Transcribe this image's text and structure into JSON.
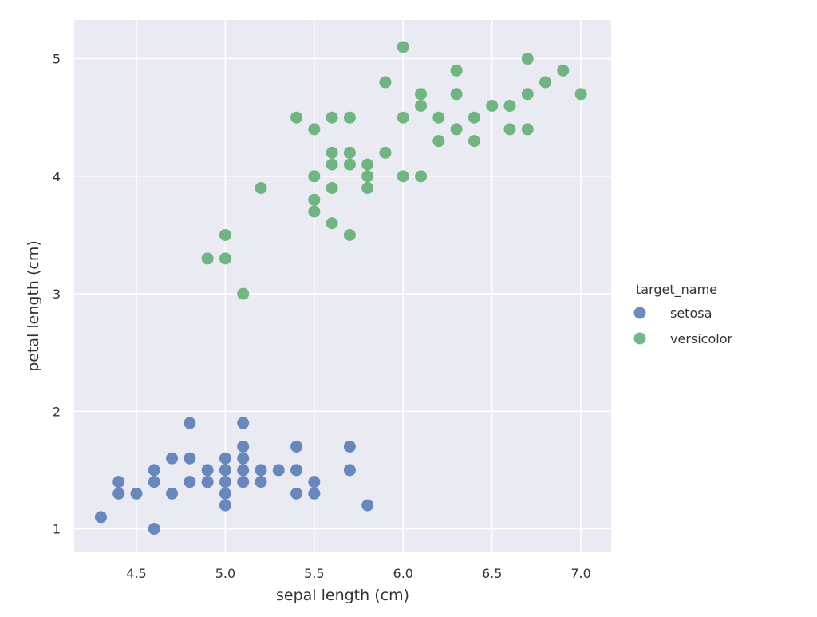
{
  "chart_data": {
    "type": "scatter",
    "xlabel": "sepal length (cm)",
    "ylabel": "petal length (cm)",
    "xlim": [
      4.15,
      7.17
    ],
    "ylim": [
      0.8,
      5.33
    ],
    "xticks": [
      "4.5",
      "5.0",
      "5.5",
      "6.0",
      "6.5",
      "7.0"
    ],
    "yticks": [
      "1",
      "2",
      "3",
      "4",
      "5"
    ],
    "grid": true,
    "background": "#eaeaf2",
    "legend": {
      "title": "target_name",
      "placement": "right"
    },
    "series": [
      {
        "name": "setosa",
        "color": "#4c72b0",
        "points": [
          [
            4.3,
            1.1
          ],
          [
            4.4,
            1.3
          ],
          [
            4.4,
            1.4
          ],
          [
            4.5,
            1.3
          ],
          [
            4.6,
            1.0
          ],
          [
            4.6,
            1.4
          ],
          [
            4.6,
            1.5
          ],
          [
            4.7,
            1.3
          ],
          [
            4.7,
            1.6
          ],
          [
            4.8,
            1.4
          ],
          [
            4.8,
            1.6
          ],
          [
            4.8,
            1.9
          ],
          [
            4.9,
            1.4
          ],
          [
            4.9,
            1.5
          ],
          [
            5.0,
            1.2
          ],
          [
            5.0,
            1.3
          ],
          [
            5.0,
            1.4
          ],
          [
            5.0,
            1.5
          ],
          [
            5.0,
            1.6
          ],
          [
            5.1,
            1.4
          ],
          [
            5.1,
            1.5
          ],
          [
            5.1,
            1.6
          ],
          [
            5.1,
            1.7
          ],
          [
            5.1,
            1.9
          ],
          [
            5.2,
            1.4
          ],
          [
            5.2,
            1.5
          ],
          [
            5.3,
            1.5
          ],
          [
            5.4,
            1.3
          ],
          [
            5.4,
            1.5
          ],
          [
            5.4,
            1.7
          ],
          [
            5.5,
            1.3
          ],
          [
            5.5,
            1.4
          ],
          [
            5.7,
            1.5
          ],
          [
            5.7,
            1.7
          ],
          [
            5.8,
            1.2
          ]
        ]
      },
      {
        "name": "versicolor",
        "color": "#55a868",
        "points": [
          [
            4.9,
            3.3
          ],
          [
            5.0,
            3.3
          ],
          [
            5.0,
            3.5
          ],
          [
            5.1,
            3.0
          ],
          [
            5.2,
            3.9
          ],
          [
            5.4,
            4.5
          ],
          [
            5.5,
            3.7
          ],
          [
            5.5,
            3.8
          ],
          [
            5.5,
            4.0
          ],
          [
            5.5,
            4.4
          ],
          [
            5.6,
            3.6
          ],
          [
            5.6,
            3.9
          ],
          [
            5.6,
            4.1
          ],
          [
            5.6,
            4.2
          ],
          [
            5.6,
            4.5
          ],
          [
            5.7,
            3.5
          ],
          [
            5.7,
            4.1
          ],
          [
            5.7,
            4.2
          ],
          [
            5.7,
            4.5
          ],
          [
            5.8,
            3.9
          ],
          [
            5.8,
            4.0
          ],
          [
            5.8,
            4.1
          ],
          [
            5.9,
            4.2
          ],
          [
            5.9,
            4.8
          ],
          [
            6.0,
            4.0
          ],
          [
            6.0,
            4.5
          ],
          [
            6.0,
            5.1
          ],
          [
            6.1,
            4.0
          ],
          [
            6.1,
            4.6
          ],
          [
            6.1,
            4.7
          ],
          [
            6.2,
            4.3
          ],
          [
            6.2,
            4.5
          ],
          [
            6.3,
            4.4
          ],
          [
            6.3,
            4.7
          ],
          [
            6.3,
            4.9
          ],
          [
            6.4,
            4.3
          ],
          [
            6.4,
            4.5
          ],
          [
            6.5,
            4.6
          ],
          [
            6.6,
            4.4
          ],
          [
            6.6,
            4.6
          ],
          [
            6.7,
            4.4
          ],
          [
            6.7,
            4.7
          ],
          [
            6.7,
            5.0
          ],
          [
            6.8,
            4.8
          ],
          [
            6.9,
            4.9
          ],
          [
            7.0,
            4.7
          ]
        ]
      }
    ]
  }
}
